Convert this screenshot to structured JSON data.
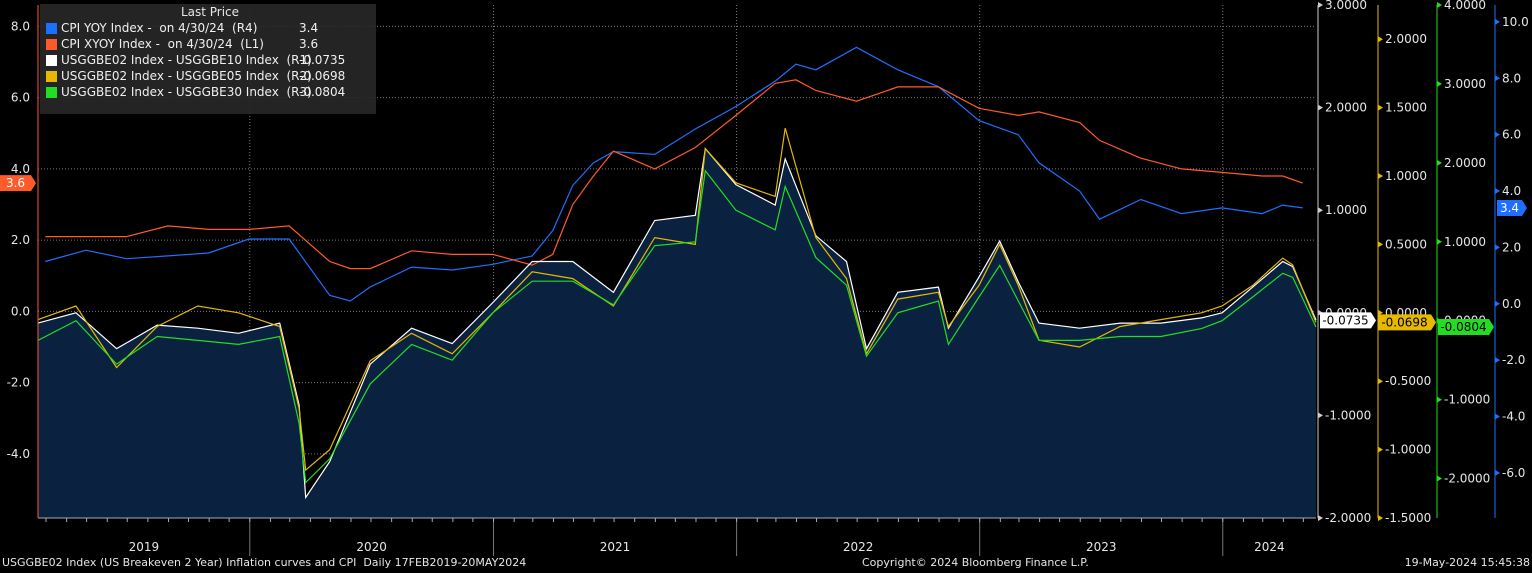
{
  "legend": {
    "header": "Last Price",
    "rows": [
      {
        "label": "CPI YOY Index -  on 4/30/24  (R4)",
        "value": "3.4",
        "color": "#1f6fff"
      },
      {
        "label": "CPI XYOY Index -  on 4/30/24  (L1)",
        "value": "3.6",
        "color": "#ff5a2a"
      },
      {
        "label": "USGGBE02 Index - USGGBE10 Index  (R1)",
        "value": "-0.0735",
        "color": "#ffffff"
      },
      {
        "label": "USGGBE02 Index - USGGBE05 Index  (R2)",
        "value": "-0.0698",
        "color": "#e6b800"
      },
      {
        "label": "USGGBE02 Index - USGGBE30 Index  (R3)",
        "value": "-0.0804",
        "color": "#22dd22"
      }
    ]
  },
  "footer": {
    "left": "USGGBE02 Index (US Breakeven 2 Year) Inflation curves and CPI  Daily 17FEB2019-20MAY2024",
    "center": "Copyright© 2024 Bloomberg Finance L.P.",
    "right": "19-May-2024 15:45:38"
  },
  "chart_data": {
    "type": "line",
    "x_start": "2019-02-17",
    "x_end": "2024-05-20",
    "x_tick_labels": [
      "2019",
      "2020",
      "2021",
      "2022",
      "2023",
      "2024"
    ],
    "grid": true,
    "axes": {
      "L1": {
        "range": [
          -5.8,
          8.6
        ],
        "ticks": [
          "8.0",
          "6.0",
          "4.0",
          "2.0",
          "0.0",
          "-2.0",
          "-4.0"
        ],
        "color": "#ff5a2a"
      },
      "R1": {
        "range": [
          -2.0,
          3.0
        ],
        "ticks": [
          "3.0000",
          "2.0000",
          "1.0000",
          "0.0000",
          "-1.0000",
          "-2.0000"
        ],
        "color": "#cccccc"
      },
      "R2": {
        "range": [
          -1.5,
          2.25
        ],
        "ticks": [
          "2.0000",
          "1.5000",
          "1.0000",
          "0.5000",
          "0.0000",
          "-0.5000",
          "-1.0000",
          "-1.5000"
        ],
        "color": "#e6b800"
      },
      "R3": {
        "range": [
          -2.5,
          4.0
        ],
        "ticks": [
          "4.0000",
          "3.0000",
          "2.0000",
          "1.0000",
          "0.0000",
          "-1.0000",
          "-2.0000"
        ],
        "color": "#22dd22"
      },
      "R4": {
        "range": [
          -7.6,
          10.6
        ],
        "ticks": [
          "10.0",
          "8.0",
          "6.0",
          "4.0",
          "2.0",
          "0.0",
          "-2.0",
          "-4.0",
          "-6.0"
        ],
        "color": "#1f6fff"
      }
    },
    "series": [
      {
        "name": "CPI YOY Index -  on 4/30/24  (R4)",
        "axis": "R4",
        "color": "#1f6fff",
        "x": [
          "2019-02-28",
          "2019-04-30",
          "2019-06-30",
          "2019-08-31",
          "2019-10-31",
          "2019-12-31",
          "2020-02-29",
          "2020-04-30",
          "2020-05-31",
          "2020-06-30",
          "2020-08-31",
          "2020-10-31",
          "2020-12-31",
          "2021-02-28",
          "2021-03-31",
          "2021-04-30",
          "2021-05-31",
          "2021-06-30",
          "2021-08-31",
          "2021-10-31",
          "2021-12-31",
          "2022-02-28",
          "2022-03-31",
          "2022-04-30",
          "2022-06-30",
          "2022-08-31",
          "2022-10-31",
          "2022-12-31",
          "2023-02-28",
          "2023-03-31",
          "2023-05-31",
          "2023-06-30",
          "2023-08-31",
          "2023-10-31",
          "2023-12-31",
          "2024-02-29",
          "2024-03-31",
          "2024-04-30"
        ],
        "y": [
          1.5,
          1.9,
          1.6,
          1.7,
          1.8,
          2.3,
          2.3,
          0.3,
          0.1,
          0.6,
          1.3,
          1.2,
          1.4,
          1.7,
          2.6,
          4.2,
          5.0,
          5.4,
          5.3,
          6.2,
          7.0,
          7.9,
          8.5,
          8.3,
          9.1,
          8.3,
          7.7,
          6.5,
          6.0,
          5.0,
          4.0,
          3.0,
          3.7,
          3.2,
          3.4,
          3.2,
          3.5,
          3.4
        ]
      },
      {
        "name": "CPI XYOY Index -  on 4/30/24  (L1)",
        "axis": "L1",
        "color": "#ff5a2a",
        "x": [
          "2019-02-28",
          "2019-04-30",
          "2019-06-30",
          "2019-08-31",
          "2019-10-31",
          "2019-12-31",
          "2020-02-29",
          "2020-04-30",
          "2020-05-31",
          "2020-06-30",
          "2020-08-31",
          "2020-10-31",
          "2020-12-31",
          "2021-02-28",
          "2021-03-31",
          "2021-04-30",
          "2021-05-31",
          "2021-06-30",
          "2021-08-31",
          "2021-10-31",
          "2021-12-31",
          "2022-02-28",
          "2022-03-31",
          "2022-04-30",
          "2022-06-30",
          "2022-08-31",
          "2022-10-31",
          "2022-12-31",
          "2023-02-28",
          "2023-03-31",
          "2023-05-31",
          "2023-06-30",
          "2023-08-31",
          "2023-10-31",
          "2023-12-31",
          "2024-02-29",
          "2024-03-31",
          "2024-04-30"
        ],
        "y": [
          2.1,
          2.1,
          2.1,
          2.4,
          2.3,
          2.3,
          2.4,
          1.4,
          1.2,
          1.2,
          1.7,
          1.6,
          1.6,
          1.3,
          1.6,
          3.0,
          3.8,
          4.5,
          4.0,
          4.6,
          5.5,
          6.4,
          6.5,
          6.2,
          5.9,
          6.3,
          6.3,
          5.7,
          5.5,
          5.6,
          5.3,
          4.8,
          4.3,
          4.0,
          3.9,
          3.8,
          3.8,
          3.6
        ]
      },
      {
        "name": "USGGBE02 Index - USGGBE10 Index  (R1)",
        "axis": "R1",
        "color": "#ffffff",
        "x": [
          "2019-02-17",
          "2019-04-15",
          "2019-06-15",
          "2019-08-15",
          "2019-10-15",
          "2019-12-15",
          "2020-02-15",
          "2020-03-15",
          "2020-03-25",
          "2020-04-30",
          "2020-06-30",
          "2020-08-31",
          "2020-10-31",
          "2020-12-31",
          "2021-02-28",
          "2021-04-30",
          "2021-06-30",
          "2021-08-31",
          "2021-10-31",
          "2021-11-15",
          "2021-12-31",
          "2022-02-28",
          "2022-03-15",
          "2022-04-30",
          "2022-06-15",
          "2022-07-15",
          "2022-08-31",
          "2022-10-31",
          "2022-11-15",
          "2022-12-31",
          "2023-01-31",
          "2023-02-28",
          "2023-03-31",
          "2023-05-31",
          "2023-07-31",
          "2023-09-30",
          "2023-11-30",
          "2023-12-31",
          "2024-02-15",
          "2024-03-31",
          "2024-04-15",
          "2024-05-20"
        ],
        "y": [
          -0.1,
          0.0,
          -0.35,
          -0.12,
          -0.15,
          -0.2,
          -0.1,
          -0.9,
          -1.8,
          -1.45,
          -0.5,
          -0.15,
          -0.3,
          0.1,
          0.5,
          0.5,
          0.2,
          0.9,
          0.95,
          1.6,
          1.25,
          1.05,
          1.5,
          0.75,
          0.5,
          -0.35,
          0.2,
          0.25,
          -0.15,
          0.35,
          0.7,
          0.3,
          -0.1,
          -0.15,
          -0.1,
          -0.1,
          -0.05,
          0.0,
          0.25,
          0.5,
          0.45,
          -0.07
        ]
      },
      {
        "name": "USGGBE02 Index - USGGBE05 Index  (R2)",
        "axis": "R2",
        "color": "#e6b800",
        "x": [
          "2019-02-17",
          "2019-04-15",
          "2019-06-15",
          "2019-08-15",
          "2019-10-15",
          "2019-12-15",
          "2020-02-15",
          "2020-03-15",
          "2020-03-25",
          "2020-04-30",
          "2020-06-30",
          "2020-08-31",
          "2020-10-31",
          "2020-12-31",
          "2021-02-28",
          "2021-04-30",
          "2021-06-30",
          "2021-08-31",
          "2021-10-31",
          "2021-11-15",
          "2021-12-31",
          "2022-02-28",
          "2022-03-15",
          "2022-04-30",
          "2022-06-15",
          "2022-07-15",
          "2022-08-31",
          "2022-10-31",
          "2022-11-15",
          "2022-12-31",
          "2023-01-31",
          "2023-02-28",
          "2023-03-31",
          "2023-05-31",
          "2023-07-31",
          "2023-09-30",
          "2023-11-30",
          "2023-12-31",
          "2024-02-15",
          "2024-03-31",
          "2024-04-15",
          "2024-05-20"
        ],
        "y": [
          -0.05,
          0.05,
          -0.4,
          -0.1,
          0.05,
          0.0,
          -0.1,
          -0.7,
          -1.15,
          -1.0,
          -0.35,
          -0.15,
          -0.3,
          0.0,
          0.3,
          0.25,
          0.05,
          0.55,
          0.5,
          1.2,
          0.95,
          0.85,
          1.35,
          0.55,
          0.25,
          -0.3,
          0.1,
          0.15,
          -0.1,
          0.2,
          0.5,
          0.2,
          -0.2,
          -0.25,
          -0.1,
          -0.05,
          0.0,
          0.05,
          0.2,
          0.4,
          0.35,
          -0.07
        ]
      },
      {
        "name": "USGGBE02 Index - USGGBE30 Index  (R3)",
        "axis": "R3",
        "color": "#22dd22",
        "x": [
          "2019-02-17",
          "2019-04-15",
          "2019-06-15",
          "2019-08-15",
          "2019-10-15",
          "2019-12-15",
          "2020-02-15",
          "2020-03-15",
          "2020-03-25",
          "2020-04-30",
          "2020-06-30",
          "2020-08-31",
          "2020-10-31",
          "2020-12-31",
          "2021-02-28",
          "2021-04-30",
          "2021-06-30",
          "2021-08-31",
          "2021-10-31",
          "2021-11-15",
          "2021-12-31",
          "2022-02-28",
          "2022-03-15",
          "2022-04-30",
          "2022-06-15",
          "2022-07-15",
          "2022-08-31",
          "2022-10-31",
          "2022-11-15",
          "2022-12-31",
          "2023-01-31",
          "2023-02-28",
          "2023-03-31",
          "2023-05-31",
          "2023-07-31",
          "2023-09-30",
          "2023-11-30",
          "2023-12-31",
          "2024-02-15",
          "2024-03-31",
          "2024-04-15",
          "2024-05-20"
        ],
        "y": [
          -0.25,
          0.0,
          -0.55,
          -0.2,
          -0.25,
          -0.3,
          -0.2,
          -1.3,
          -2.05,
          -1.75,
          -0.8,
          -0.3,
          -0.5,
          0.1,
          0.5,
          0.5,
          0.2,
          0.95,
          1.0,
          1.9,
          1.4,
          1.15,
          1.7,
          0.8,
          0.45,
          -0.45,
          0.1,
          0.25,
          -0.3,
          0.3,
          0.7,
          0.25,
          -0.25,
          -0.25,
          -0.2,
          -0.2,
          -0.1,
          0.0,
          0.3,
          0.6,
          0.55,
          -0.08
        ]
      }
    ],
    "last_value_labels": [
      {
        "text": "3.6",
        "axis": "L1",
        "value": 3.6,
        "bg": "#ff5a2a"
      },
      {
        "text": "-0.0735",
        "axis": "R1",
        "value": -0.0735,
        "bg": "#ffffff"
      },
      {
        "text": "-0.0698",
        "axis": "R2",
        "value": -0.0698,
        "bg": "#e6b800"
      },
      {
        "text": "-0.0804",
        "axis": "R3",
        "value": -0.0804,
        "bg": "#22dd22"
      },
      {
        "text": "3.4",
        "axis": "R4",
        "value": 3.4,
        "bg": "#1f6fff"
      }
    ]
  }
}
